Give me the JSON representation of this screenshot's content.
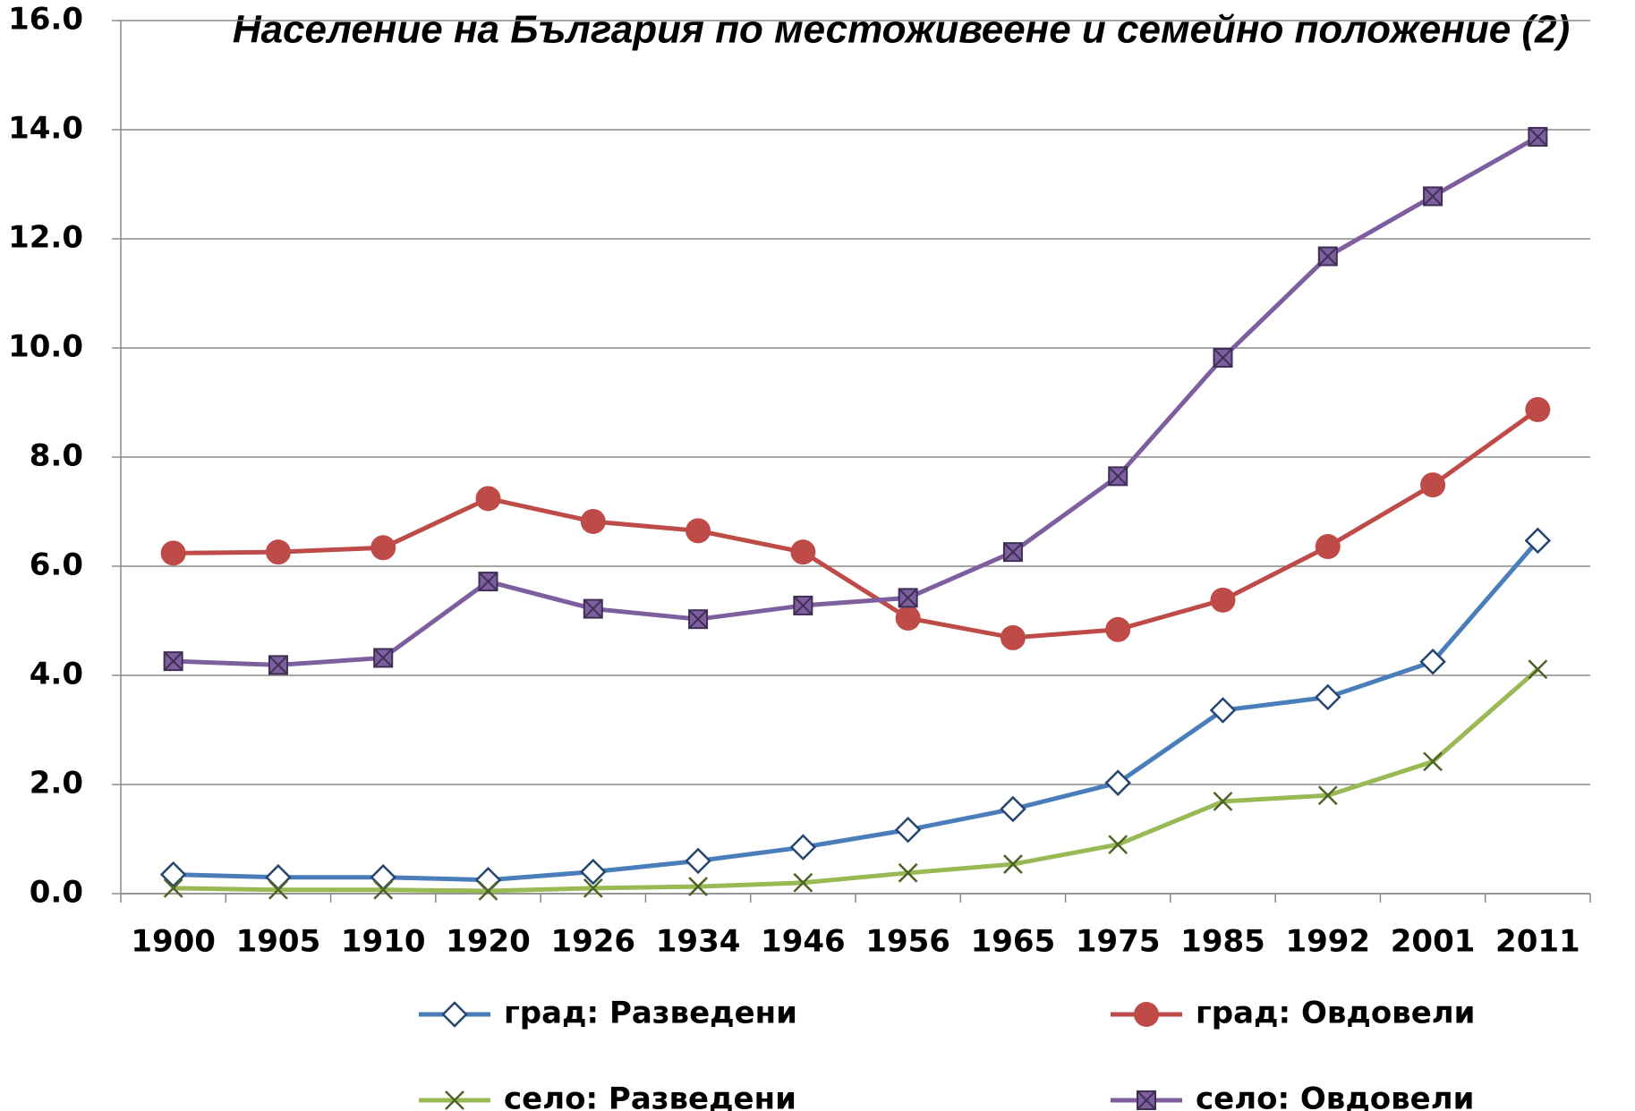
{
  "chart_data": {
    "type": "line",
    "title": "Население на България по местоживеене и семейно положение (2)",
    "categories": [
      "1900",
      "1905",
      "1910",
      "1920",
      "1926",
      "1934",
      "1946",
      "1956",
      "1965",
      "1975",
      "1985",
      "1992",
      "2001",
      "2011"
    ],
    "series": [
      {
        "name": "град: Разведени",
        "color": "#4a7ebb",
        "marker": "diamond",
        "values": [
          0.35,
          0.3,
          0.3,
          0.25,
          0.4,
          0.6,
          0.85,
          1.17,
          1.55,
          2.03,
          3.36,
          3.6,
          4.25,
          6.47
        ]
      },
      {
        "name": "град: Овдовели",
        "color": "#be4b48",
        "marker": "circle",
        "values": [
          6.24,
          6.26,
          6.34,
          7.24,
          6.82,
          6.65,
          6.26,
          5.05,
          4.69,
          4.84,
          5.38,
          6.36,
          7.49,
          8.87
        ]
      },
      {
        "name": "село: Разведени",
        "color": "#98b954",
        "marker": "x",
        "values": [
          0.1,
          0.07,
          0.07,
          0.05,
          0.1,
          0.13,
          0.2,
          0.38,
          0.54,
          0.9,
          1.69,
          1.8,
          2.42,
          4.11
        ]
      },
      {
        "name": "село: Овдовели",
        "color": "#7d5fa0",
        "marker": "square",
        "values": [
          4.26,
          4.19,
          4.32,
          5.72,
          5.22,
          5.03,
          5.28,
          5.42,
          6.26,
          7.65,
          9.82,
          11.68,
          12.78,
          13.87
        ]
      }
    ],
    "ylim": [
      0,
      16
    ],
    "yticks": [
      {
        "value": 0,
        "label": "0.0"
      },
      {
        "value": 2,
        "label": "2.0"
      },
      {
        "value": 4,
        "label": "4.0"
      },
      {
        "value": 6,
        "label": "6.0"
      },
      {
        "value": 8,
        "label": "8.0"
      },
      {
        "value": 10,
        "label": "10.0"
      },
      {
        "value": 12,
        "label": "12.0"
      },
      {
        "value": 14,
        "label": "14.0"
      },
      {
        "value": 16,
        "label": "16.0"
      }
    ],
    "grid": true,
    "legend": "bottom"
  }
}
